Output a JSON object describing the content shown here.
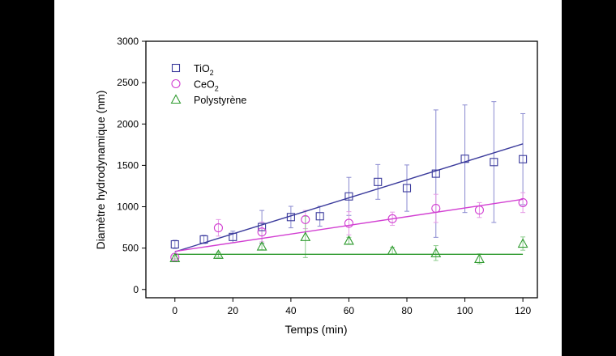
{
  "chart_data": {
    "type": "scatter",
    "xlabel": "Temps (min)",
    "ylabel": "Diamètre hydrodynamique (nm)",
    "xlim": [
      -10,
      125
    ],
    "ylim": [
      -100,
      3000
    ],
    "xticks": [
      0,
      20,
      40,
      60,
      80,
      100,
      120
    ],
    "yticks": [
      0,
      500,
      1000,
      1500,
      2000,
      2500,
      3000
    ],
    "grid": false,
    "legend_position": "top-left",
    "series": [
      {
        "name": "TiO2",
        "label_main": "TiO",
        "label_sub": "2",
        "marker": "square",
        "color": "#3b3b9c",
        "errcolor": "#8a8ad0",
        "x": [
          0,
          10,
          20,
          30,
          40,
          50,
          60,
          70,
          80,
          90,
          100,
          110,
          120
        ],
        "y": [
          545,
          605,
          635,
          755,
          875,
          885,
          1125,
          1300,
          1225,
          1400,
          1580,
          1540,
          1575
        ],
        "err": [
          50,
          50,
          70,
          200,
          130,
          120,
          230,
          210,
          280,
          770,
          650,
          730,
          550
        ],
        "fit": {
          "x": [
            0,
            120
          ],
          "y": [
            455,
            1760
          ]
        }
      },
      {
        "name": "CeO2",
        "label_main": "CeO",
        "label_sub": "2",
        "marker": "circle",
        "color": "#d23fd2",
        "errcolor": "#e69ae6",
        "x": [
          0,
          15,
          30,
          45,
          60,
          75,
          90,
          105,
          120
        ],
        "y": [
          390,
          745,
          695,
          845,
          800,
          855,
          980,
          960,
          1050
        ],
        "err": [
          20,
          100,
          120,
          110,
          140,
          80,
          170,
          90,
          120
        ],
        "fit": {
          "x": [
            0,
            120
          ],
          "y": [
            460,
            1090
          ]
        }
      },
      {
        "name": "Polystyrène",
        "label_main": "Polystyrène",
        "label_sub": "",
        "marker": "triangle",
        "color": "#2e9a2e",
        "errcolor": "#8ccc8c",
        "x": [
          0,
          15,
          30,
          45,
          60,
          75,
          90,
          105,
          120
        ],
        "y": [
          380,
          420,
          520,
          635,
          590,
          470,
          440,
          370,
          555
        ],
        "err": [
          30,
          30,
          40,
          250,
          40,
          40,
          90,
          60,
          80
        ],
        "fit": {
          "x": [
            0,
            120
          ],
          "y": [
            425,
            425
          ]
        }
      }
    ]
  }
}
